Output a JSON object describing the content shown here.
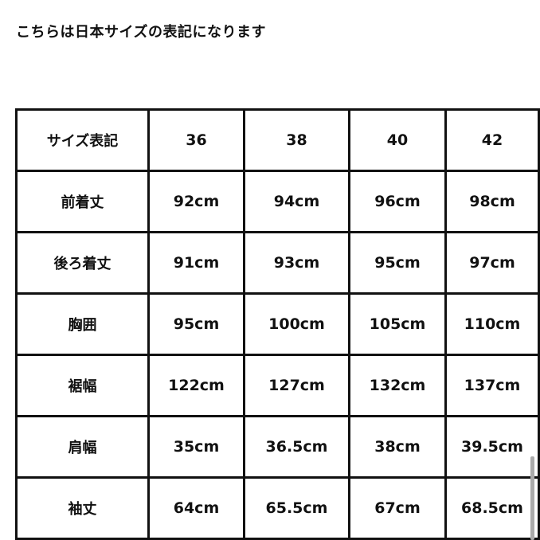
{
  "title": "こちらは日本サイズの表記になります",
  "table": {
    "header": [
      "サイズ表記",
      "36",
      "38",
      "40",
      "42"
    ],
    "rows": [
      [
        "前着丈",
        "92cm",
        "94cm",
        "96cm",
        "98cm"
      ],
      [
        "後ろ着丈",
        "91cm",
        "93cm",
        "95cm",
        "97cm"
      ],
      [
        "胸囲",
        "95cm",
        "100cm",
        "105cm",
        "110cm"
      ],
      [
        "裾幅",
        "122cm",
        "127cm",
        "132cm",
        "137cm"
      ],
      [
        "肩幅",
        "35cm",
        "36.5cm",
        "38cm",
        "39.5cm"
      ],
      [
        "袖丈",
        "64cm",
        "65.5cm",
        "67cm",
        "68.5cm"
      ]
    ]
  }
}
